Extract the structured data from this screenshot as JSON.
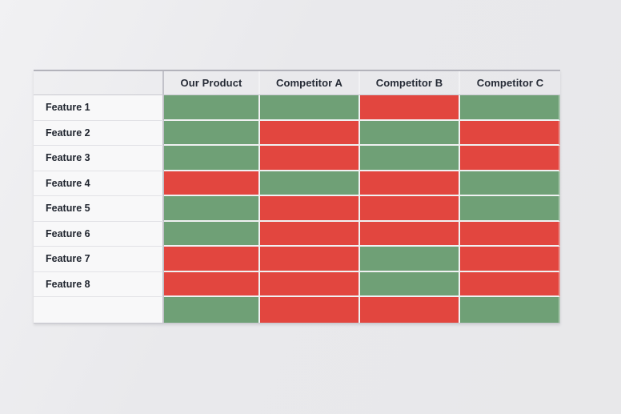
{
  "page": {
    "background_color": "#E9E9EC"
  },
  "chart_data": {
    "type": "table",
    "title": "",
    "corner_label": "",
    "columns": [
      "Our Product",
      "Competitor A",
      "Competitor B",
      "Competitor C"
    ],
    "rows": [
      {
        "label": "Feature 1",
        "values": [
          "yes",
          "yes",
          "no",
          "yes"
        ]
      },
      {
        "label": "Feature 2",
        "values": [
          "yes",
          "no",
          "yes",
          "no"
        ]
      },
      {
        "label": "Feature 3",
        "values": [
          "yes",
          "no",
          "yes",
          "no"
        ]
      },
      {
        "label": "Feature 4",
        "values": [
          "no",
          "yes",
          "no",
          "yes"
        ]
      },
      {
        "label": "Feature 5",
        "values": [
          "yes",
          "no",
          "no",
          "yes"
        ]
      },
      {
        "label": "Feature 6",
        "values": [
          "yes",
          "no",
          "no",
          "no"
        ]
      },
      {
        "label": "Feature 7",
        "values": [
          "no",
          "no",
          "yes",
          "no"
        ]
      },
      {
        "label": "Feature 8",
        "values": [
          "no",
          "no",
          "yes",
          "no"
        ]
      },
      {
        "label": "",
        "values": [
          "yes",
          "no",
          "no",
          "yes"
        ]
      }
    ],
    "value_colors": {
      "yes": "#6FA076",
      "no": "#E2463F"
    }
  }
}
